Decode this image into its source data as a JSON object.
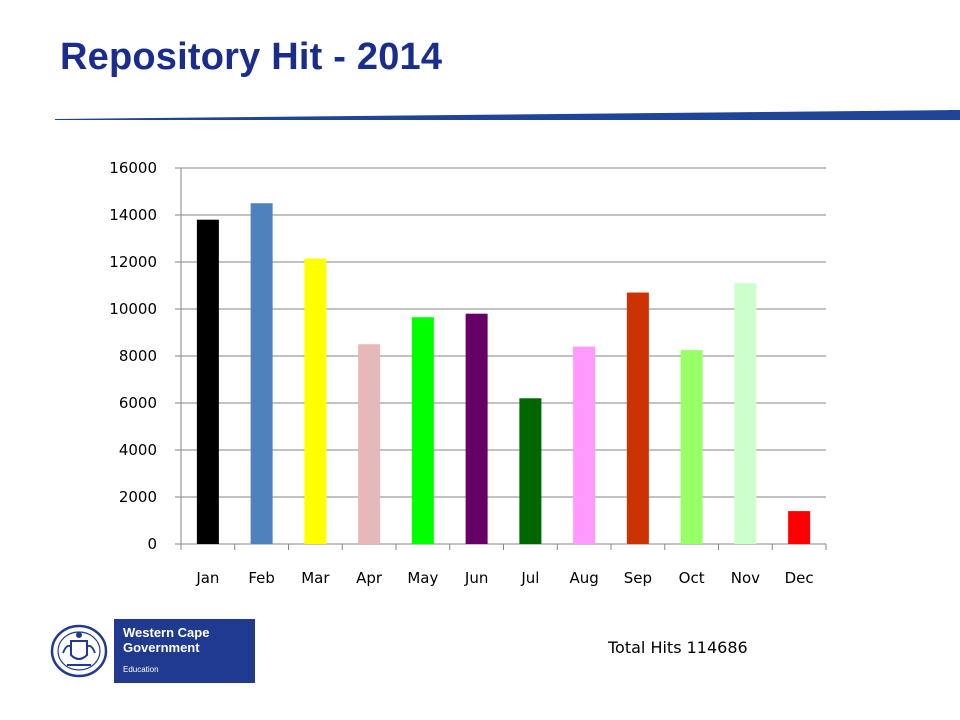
{
  "slide": {
    "title": "Repository Hit - 2014",
    "total_hits": "Total Hits 114686"
  },
  "logo": {
    "name_line1": "Western Cape",
    "name_line2": "Government",
    "department": "Education",
    "icon": "coat-of-arms-crest-icon"
  },
  "colors": {
    "title": "#1a2d8c",
    "header_rule": "#1f4596",
    "logo_background": "#1f3a8f"
  },
  "chart_data": {
    "type": "bar",
    "title": "",
    "xlabel": "",
    "ylabel": "",
    "categories": [
      "Jan",
      "Feb",
      "Mar",
      "Apr",
      "May",
      "Jun",
      "Jul",
      "Aug",
      "Sep",
      "Oct",
      "Nov",
      "Dec"
    ],
    "values": [
      13800,
      14500,
      12150,
      8500,
      9650,
      9800,
      6200,
      8400,
      10700,
      8250,
      11100,
      1400
    ],
    "bar_colors": [
      "#000000",
      "#4f81bd",
      "#ffff00",
      "#e6b9b8",
      "#00ff00",
      "#660066",
      "#006600",
      "#ff99ff",
      "#cc3300",
      "#99ff66",
      "#ccffcc",
      "#ff0000"
    ],
    "ylim": [
      0,
      16000
    ],
    "y_ticks": [
      0,
      2000,
      4000,
      6000,
      8000,
      10000,
      12000,
      14000,
      16000
    ],
    "grid": true,
    "legend": false
  }
}
